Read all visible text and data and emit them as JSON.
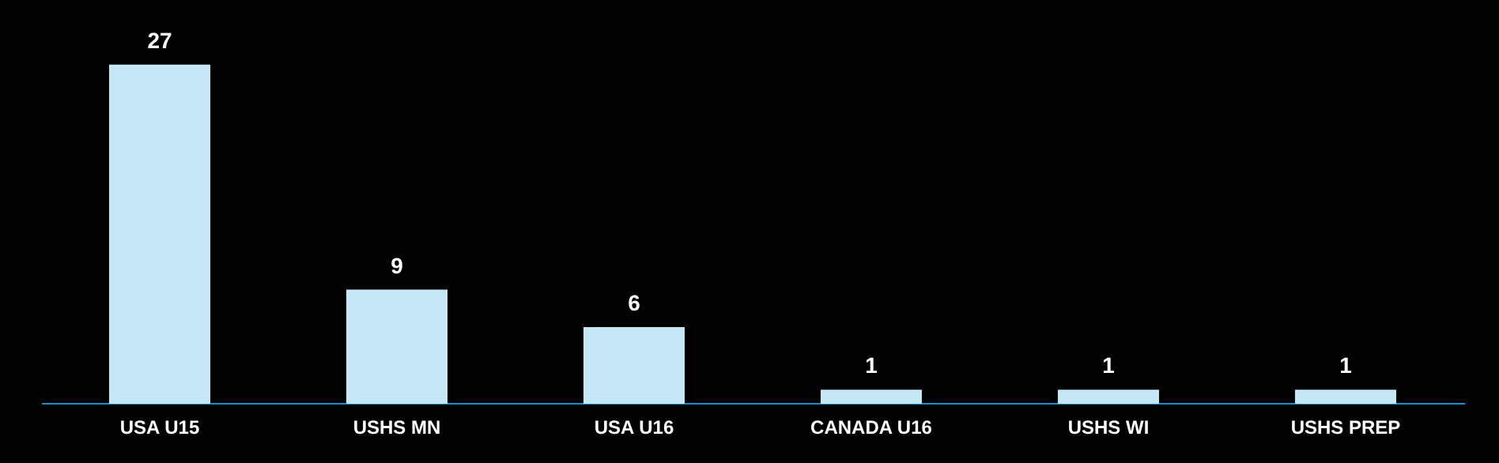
{
  "chart_data": {
    "type": "bar",
    "categories": [
      "USA U15",
      "USHS MN",
      "USA U16",
      "CANADA U16",
      "USHS WI",
      "USHS PREP"
    ],
    "values": [
      27,
      9,
      6,
      1,
      1,
      1
    ],
    "color": "#c4e6f5",
    "data_labels": true
  }
}
